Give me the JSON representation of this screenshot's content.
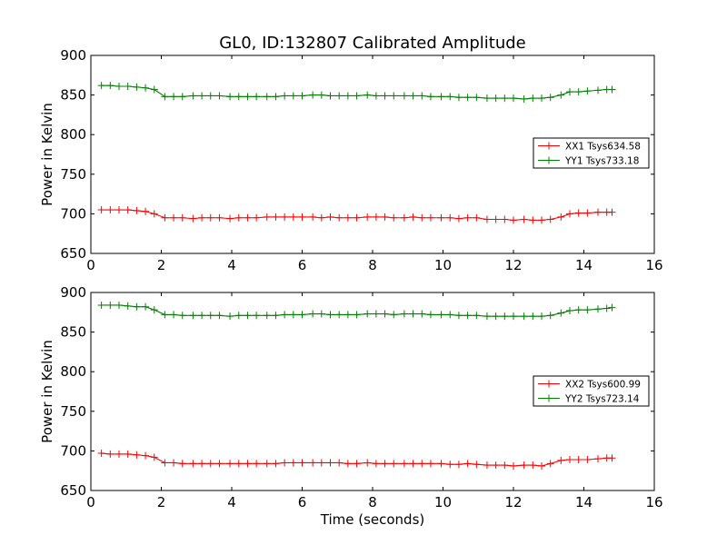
{
  "figure": {
    "title": "GL0, ID:132807 Calibrated Amplitude"
  },
  "chart_data": [
    {
      "type": "line",
      "title": "GL0, ID:132807 Calibrated Amplitude",
      "xlabel": "",
      "ylabel": "Power in Kelvin",
      "xlim": [
        0,
        16
      ],
      "ylim": [
        650,
        900
      ],
      "xticks": [
        "0",
        "2",
        "4",
        "6",
        "8",
        "10",
        "12",
        "14",
        "16"
      ],
      "yticks": [
        "650",
        "700",
        "750",
        "800",
        "850",
        "900"
      ],
      "grid": false,
      "legend_placement": "right",
      "x": [
        0.3,
        0.55,
        0.8,
        1.05,
        1.3,
        1.55,
        1.8,
        2.1,
        2.35,
        2.6,
        2.9,
        3.15,
        3.4,
        3.65,
        3.95,
        4.2,
        4.45,
        4.7,
        5.0,
        5.25,
        5.5,
        5.75,
        6.0,
        6.3,
        6.55,
        6.8,
        7.05,
        7.3,
        7.55,
        7.85,
        8.1,
        8.35,
        8.6,
        8.9,
        9.15,
        9.4,
        9.65,
        9.95,
        10.2,
        10.45,
        10.7,
        10.95,
        11.25,
        11.5,
        11.75,
        12.0,
        12.3,
        12.55,
        12.8,
        13.05,
        13.35,
        13.6,
        13.85,
        14.1,
        14.4,
        14.65,
        14.8
      ],
      "series": [
        {
          "name": "XX1 Tsys634.58",
          "color": "#ff0000",
          "values": [
            705,
            705,
            705,
            705,
            704,
            703,
            700,
            695,
            695,
            695,
            694,
            695,
            695,
            695,
            694,
            695,
            695,
            695,
            696,
            696,
            696,
            696,
            696,
            696,
            695,
            696,
            695,
            695,
            695,
            696,
            696,
            696,
            695,
            695,
            696,
            695,
            695,
            695,
            695,
            694,
            695,
            695,
            693,
            693,
            693,
            692,
            693,
            692,
            692,
            693,
            696,
            700,
            701,
            701,
            702,
            702,
            702
          ]
        },
        {
          "name": "YY1 Tsys733.18",
          "color": "#008000",
          "values": [
            862,
            862,
            861,
            861,
            860,
            859,
            857,
            848,
            848,
            848,
            849,
            849,
            849,
            849,
            848,
            848,
            848,
            848,
            848,
            848,
            849,
            849,
            849,
            850,
            850,
            849,
            849,
            849,
            849,
            850,
            849,
            849,
            849,
            849,
            849,
            849,
            848,
            848,
            848,
            847,
            847,
            847,
            846,
            846,
            846,
            846,
            845,
            846,
            846,
            847,
            850,
            854,
            854,
            855,
            856,
            857,
            857
          ]
        }
      ]
    },
    {
      "type": "line",
      "title": "",
      "xlabel": "Time (seconds)",
      "ylabel": "Power in Kelvin",
      "xlim": [
        0,
        16
      ],
      "ylim": [
        650,
        900
      ],
      "xticks": [
        "0",
        "2",
        "4",
        "6",
        "8",
        "10",
        "12",
        "14",
        "16"
      ],
      "yticks": [
        "650",
        "700",
        "750",
        "800",
        "850",
        "900"
      ],
      "grid": false,
      "legend_placement": "right",
      "x": [
        0.3,
        0.55,
        0.8,
        1.05,
        1.3,
        1.55,
        1.8,
        2.1,
        2.35,
        2.6,
        2.9,
        3.15,
        3.4,
        3.65,
        3.95,
        4.2,
        4.45,
        4.7,
        5.0,
        5.25,
        5.5,
        5.75,
        6.0,
        6.3,
        6.55,
        6.8,
        7.05,
        7.3,
        7.55,
        7.85,
        8.1,
        8.35,
        8.6,
        8.9,
        9.15,
        9.4,
        9.65,
        9.95,
        10.2,
        10.45,
        10.7,
        10.95,
        11.25,
        11.5,
        11.75,
        12.0,
        12.3,
        12.55,
        12.8,
        13.05,
        13.35,
        13.6,
        13.85,
        14.1,
        14.4,
        14.65,
        14.8
      ],
      "series": [
        {
          "name": "XX2 Tsys600.99",
          "color": "#ff0000",
          "values": [
            697,
            696,
            696,
            696,
            695,
            694,
            692,
            685,
            685,
            684,
            684,
            684,
            684,
            684,
            684,
            684,
            684,
            684,
            684,
            684,
            685,
            685,
            685,
            685,
            685,
            685,
            685,
            684,
            684,
            685,
            684,
            684,
            684,
            684,
            684,
            684,
            684,
            684,
            683,
            683,
            684,
            683,
            682,
            682,
            682,
            681,
            682,
            682,
            681,
            684,
            688,
            689,
            689,
            689,
            690,
            691,
            691
          ]
        },
        {
          "name": "YY2 Tsys723.14",
          "color": "#008000",
          "values": [
            884,
            884,
            884,
            883,
            882,
            882,
            878,
            872,
            872,
            871,
            871,
            871,
            871,
            871,
            870,
            871,
            871,
            871,
            871,
            871,
            872,
            872,
            872,
            873,
            873,
            872,
            872,
            872,
            872,
            873,
            873,
            873,
            872,
            873,
            873,
            873,
            872,
            872,
            872,
            871,
            871,
            871,
            870,
            870,
            870,
            870,
            870,
            870,
            870,
            871,
            874,
            877,
            878,
            878,
            879,
            880,
            881
          ]
        }
      ]
    }
  ]
}
